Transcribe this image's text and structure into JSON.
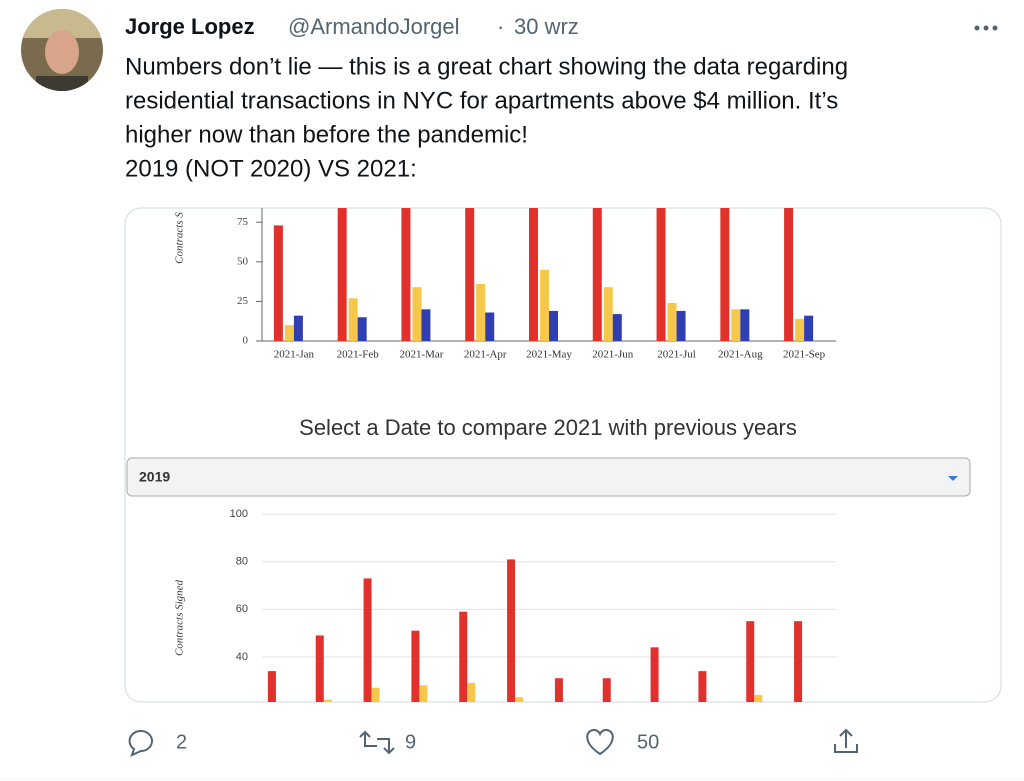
{
  "tweet": {
    "name": "Jorge Lopez",
    "handle": "@ArmandoJorgel",
    "separator": "·",
    "date": "30 wrz",
    "text_lines": [
      "Numbers don’t lie — this is a great chart showing the data regarding",
      "residential transactions in NYC for apartments above $4 million. It’s",
      "higher now than before the pandemic!",
      "2019 (NOT 2020) VS 2021:"
    ],
    "replies": "2",
    "retweets": "9",
    "likes": "50"
  },
  "card": {
    "select_title": "Select a Date to compare 2021 with previous years",
    "dropdown_value": "2019"
  },
  "chart_data": [
    {
      "type": "bar",
      "y_label": "Contracts S",
      "categories": [
        "2021-Jan",
        "2021-Feb",
        "2021-Mar",
        "2021-Apr",
        "2021-May",
        "2021-Jun",
        "2021-Jul",
        "2021-Aug",
        "2021-Sep"
      ],
      "series": [
        {
          "color": "#e0312c",
          "values": [
            73,
            84,
            84,
            84,
            84,
            84,
            84,
            84,
            84
          ]
        },
        {
          "color": "#f5c84c",
          "values": [
            10,
            27,
            34,
            36,
            45,
            34,
            24,
            20,
            14
          ]
        },
        {
          "color": "#2f3fb3",
          "values": [
            16,
            15,
            20,
            18,
            19,
            17,
            19,
            20,
            16
          ]
        }
      ],
      "ylim": [
        0,
        84
      ],
      "yticks": [
        0,
        25,
        50,
        75
      ],
      "grid": false
    },
    {
      "type": "bar",
      "y_label": "Contracts Signed",
      "categories": [
        null,
        null,
        null,
        null,
        null,
        null,
        null,
        null,
        null,
        null,
        null,
        null
      ],
      "series": [
        {
          "color": "#e0312c",
          "values": [
            34,
            49,
            73,
            51,
            59,
            81,
            31,
            31,
            44,
            34,
            55,
            55
          ]
        },
        {
          "color": "#f5c84c",
          "values": [
            null,
            22,
            27,
            28,
            29,
            23,
            null,
            null,
            null,
            null,
            24,
            null
          ]
        }
      ],
      "ylim": [
        21,
        106
      ],
      "yticks": [
        40,
        60,
        80,
        100
      ],
      "grid": true
    }
  ]
}
